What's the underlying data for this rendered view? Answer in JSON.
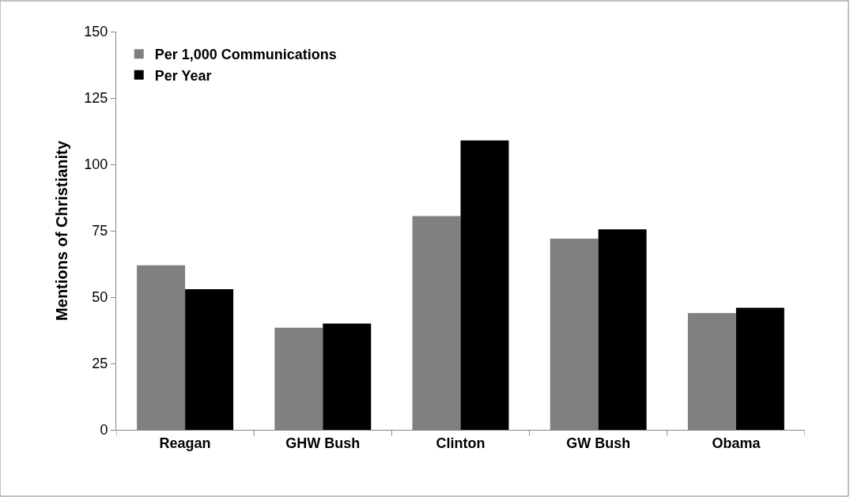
{
  "chart_data": {
    "type": "bar",
    "ylabel": "Mentions of Christianity",
    "categories": [
      "Reagan",
      "GHW Bush",
      "Clinton",
      "GW Bush",
      "Obama"
    ],
    "series": [
      {
        "name": "Per 1,000 Communications",
        "color": "#808080",
        "values": [
          62,
          38.5,
          80.5,
          72,
          44
        ]
      },
      {
        "name": "Per Year",
        "color": "#000000",
        "values": [
          53,
          40,
          109,
          75.5,
          46
        ]
      }
    ],
    "ylim": [
      0,
      150
    ],
    "yticks": [
      0,
      25,
      50,
      75,
      100,
      125,
      150
    ],
    "legend": "top left"
  }
}
